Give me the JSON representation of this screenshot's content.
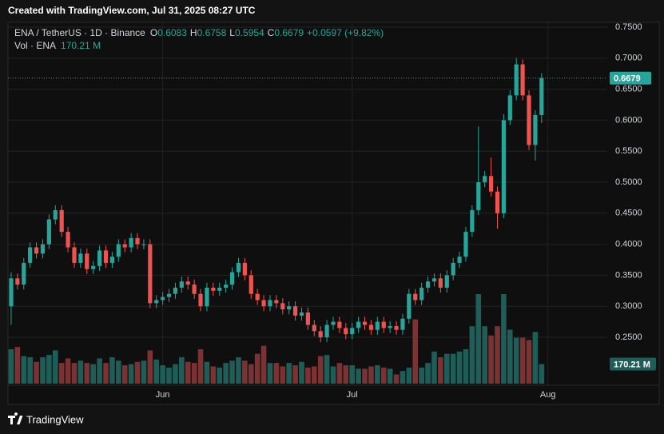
{
  "watermark": "Created with TradingView.com, Jul 31, 2025 08:27 UTC",
  "brand": "TradingView",
  "chart_data": {
    "type": "candlestick",
    "symbol": "ENA / TetherUS · 1D · Binance",
    "ohlc_labels": [
      "O",
      "H",
      "L",
      "C"
    ],
    "change": "+0.0597 (+9.82%)",
    "volume_title": "Vol · ENA",
    "last_volume_label": "170.21 M",
    "up_color": "#26a69a",
    "down_color": "#ef5350",
    "up_volume_color": "#1f5e58",
    "down_volume_color": "#7b3232",
    "grid": true,
    "categories": [
      null,
      null,
      null,
      null,
      null,
      null,
      null,
      null,
      null,
      null,
      null,
      null,
      null,
      null,
      null,
      null,
      null,
      null,
      null,
      null,
      null,
      null,
      null,
      null,
      null,
      null,
      null,
      null,
      null,
      null,
      null,
      null,
      null,
      null,
      null,
      null,
      null,
      null,
      null,
      null,
      null,
      null,
      null,
      null,
      null,
      null,
      null,
      null,
      null,
      null,
      null,
      null,
      null,
      null,
      null,
      null,
      null,
      null,
      null,
      null,
      null,
      null,
      null,
      null,
      null,
      null,
      null,
      null,
      null,
      null,
      null,
      null,
      null,
      null,
      null,
      null,
      null,
      null,
      null,
      null,
      null,
      null,
      null,
      null,
      null
    ],
    "open": [
      0.3,
      0.345,
      0.335,
      0.37,
      0.395,
      0.385,
      0.4,
      0.44,
      0.455,
      0.42,
      0.395,
      0.37,
      0.385,
      0.36,
      0.365,
      0.39,
      0.37,
      0.38,
      0.4,
      0.395,
      0.41,
      0.4,
      0.4,
      0.305,
      0.31,
      0.315,
      0.32,
      0.33,
      0.34,
      0.335,
      0.32,
      0.3,
      0.33,
      0.325,
      0.33,
      0.335,
      0.355,
      0.37,
      0.35,
      0.32,
      0.31,
      0.3,
      0.31,
      0.305,
      0.295,
      0.3,
      0.285,
      0.29,
      0.27,
      0.26,
      0.25,
      0.27,
      0.275,
      0.265,
      0.255,
      0.265,
      0.275,
      0.27,
      0.262,
      0.275,
      0.265,
      0.268,
      0.262,
      0.28,
      0.32,
      0.31,
      0.33,
      0.34,
      0.345,
      0.33,
      0.35,
      0.37,
      0.38,
      0.42,
      0.455,
      0.5,
      0.51,
      0.485,
      0.45,
      0.6,
      0.64,
      0.69,
      0.64,
      0.56,
      0.6083
    ],
    "high": [
      0.355,
      0.353,
      0.378,
      0.403,
      0.403,
      0.408,
      0.448,
      0.463,
      0.463,
      0.428,
      0.403,
      0.393,
      0.393,
      0.373,
      0.398,
      0.398,
      0.388,
      0.408,
      0.408,
      0.418,
      0.418,
      0.408,
      0.408,
      0.318,
      0.323,
      0.328,
      0.338,
      0.348,
      0.348,
      0.343,
      0.328,
      0.338,
      0.338,
      0.338,
      0.343,
      0.363,
      0.378,
      0.378,
      0.358,
      0.328,
      0.318,
      0.318,
      0.318,
      0.313,
      0.308,
      0.308,
      0.298,
      0.298,
      0.278,
      0.268,
      0.278,
      0.283,
      0.283,
      0.273,
      0.273,
      0.283,
      0.283,
      0.278,
      0.283,
      0.283,
      0.276,
      0.276,
      0.288,
      0.328,
      0.328,
      0.338,
      0.348,
      0.353,
      0.353,
      0.358,
      0.378,
      0.388,
      0.428,
      0.463,
      0.59,
      0.518,
      0.54,
      0.493,
      0.61,
      0.648,
      0.7,
      0.698,
      0.648,
      0.616,
      0.6758
    ],
    "low": [
      0.27,
      0.327,
      0.327,
      0.362,
      0.377,
      0.377,
      0.392,
      0.432,
      0.412,
      0.387,
      0.362,
      0.362,
      0.352,
      0.352,
      0.357,
      0.362,
      0.362,
      0.372,
      0.387,
      0.387,
      0.392,
      0.392,
      0.297,
      0.297,
      0.302,
      0.307,
      0.312,
      0.322,
      0.327,
      0.312,
      0.292,
      0.292,
      0.317,
      0.317,
      0.322,
      0.327,
      0.347,
      0.342,
      0.312,
      0.302,
      0.292,
      0.292,
      0.297,
      0.287,
      0.287,
      0.277,
      0.277,
      0.262,
      0.252,
      0.242,
      0.242,
      0.262,
      0.257,
      0.247,
      0.247,
      0.257,
      0.262,
      0.254,
      0.254,
      0.257,
      0.257,
      0.254,
      0.254,
      0.272,
      0.302,
      0.302,
      0.322,
      0.332,
      0.322,
      0.322,
      0.342,
      0.362,
      0.372,
      0.412,
      0.447,
      0.492,
      0.477,
      0.425,
      0.442,
      0.592,
      0.632,
      0.632,
      0.552,
      0.535,
      0.5954
    ],
    "close": [
      0.345,
      0.335,
      0.37,
      0.395,
      0.385,
      0.4,
      0.44,
      0.455,
      0.42,
      0.395,
      0.37,
      0.385,
      0.36,
      0.365,
      0.39,
      0.37,
      0.38,
      0.4,
      0.395,
      0.41,
      0.4,
      0.4,
      0.305,
      0.31,
      0.315,
      0.32,
      0.33,
      0.34,
      0.335,
      0.32,
      0.3,
      0.33,
      0.325,
      0.33,
      0.335,
      0.355,
      0.37,
      0.35,
      0.32,
      0.31,
      0.3,
      0.31,
      0.305,
      0.295,
      0.3,
      0.285,
      0.29,
      0.27,
      0.26,
      0.25,
      0.27,
      0.275,
      0.265,
      0.255,
      0.265,
      0.275,
      0.27,
      0.262,
      0.275,
      0.265,
      0.268,
      0.262,
      0.28,
      0.32,
      0.31,
      0.33,
      0.34,
      0.345,
      0.33,
      0.35,
      0.37,
      0.38,
      0.42,
      0.455,
      0.5,
      0.51,
      0.485,
      0.45,
      0.6,
      0.64,
      0.69,
      0.64,
      0.56,
      0.6083,
      0.6679
    ],
    "volume": [
      300,
      320,
      240,
      230,
      190,
      230,
      250,
      290,
      180,
      220,
      180,
      200,
      180,
      170,
      220,
      180,
      230,
      200,
      160,
      170,
      190,
      200,
      290,
      210,
      160,
      140,
      170,
      230,
      190,
      180,
      300,
      190,
      150,
      140,
      180,
      200,
      230,
      200,
      170,
      260,
      330,
      180,
      180,
      150,
      180,
      160,
      190,
      140,
      150,
      240,
      250,
      150,
      180,
      160,
      160,
      130,
      130,
      150,
      160,
      140,
      130,
      80,
      110,
      140,
      560,
      140,
      180,
      280,
      230,
      260,
      260,
      280,
      300,
      500,
      780,
      500,
      420,
      500,
      780,
      470,
      400,
      400,
      380,
      450,
      170.21
    ],
    "ylim": [
      0.1727,
      0.7577
    ],
    "yticks": [
      {
        "value": 0.25,
        "label": "0.2500"
      },
      {
        "value": 0.3,
        "label": "0.3000"
      },
      {
        "value": 0.35,
        "label": "0.3500"
      },
      {
        "value": 0.4,
        "label": "0.4000"
      },
      {
        "value": 0.45,
        "label": "0.4500"
      },
      {
        "value": 0.5,
        "label": "0.5000"
      },
      {
        "value": 0.55,
        "label": "0.5500"
      },
      {
        "value": 0.6,
        "label": "0.6000"
      },
      {
        "value": 0.65,
        "label": "0.6500"
      },
      {
        "value": 0.7,
        "label": "0.7000"
      },
      {
        "value": 0.75,
        "label": "0.7500"
      }
    ],
    "xlim": [
      -0.5,
      94.4
    ],
    "xticks": [
      {
        "value": 24,
        "label": "Jun"
      },
      {
        "value": 54,
        "label": "Jul"
      },
      {
        "value": 85,
        "label": "Aug"
      }
    ]
  }
}
